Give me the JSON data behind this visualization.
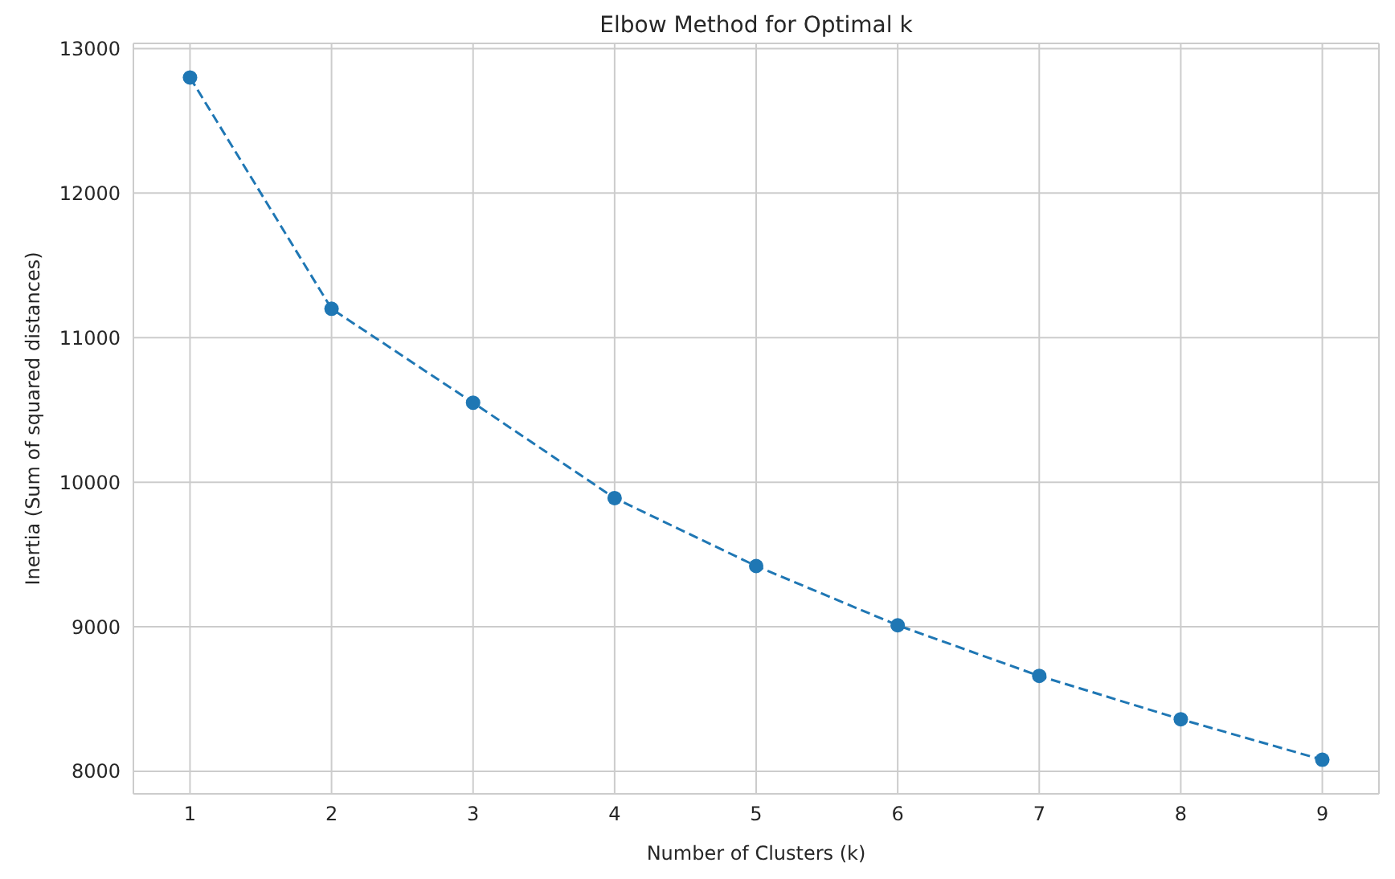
{
  "chart_data": {
    "type": "line",
    "title": "Elbow Method for Optimal k",
    "xlabel": "Number of Clusters (k)",
    "ylabel": "Inertia (Sum of squared distances)",
    "x": [
      1,
      2,
      3,
      4,
      5,
      6,
      7,
      8,
      9
    ],
    "series": [
      {
        "color": "#1f77b4",
        "values": [
          12800,
          11200,
          10550,
          9890,
          9420,
          9010,
          8660,
          8360,
          8080
        ]
      }
    ],
    "xlim": [
      0.6,
      9.4
    ],
    "xticks": [
      1,
      2,
      3,
      4,
      5,
      6,
      7,
      8,
      9
    ],
    "ylim": [
      7844,
      13036
    ],
    "yticks": [
      8000,
      9000,
      10000,
      11000,
      12000,
      13000
    ],
    "grid": true,
    "marker": "circle",
    "line_style": "dashed",
    "legend": false
  }
}
